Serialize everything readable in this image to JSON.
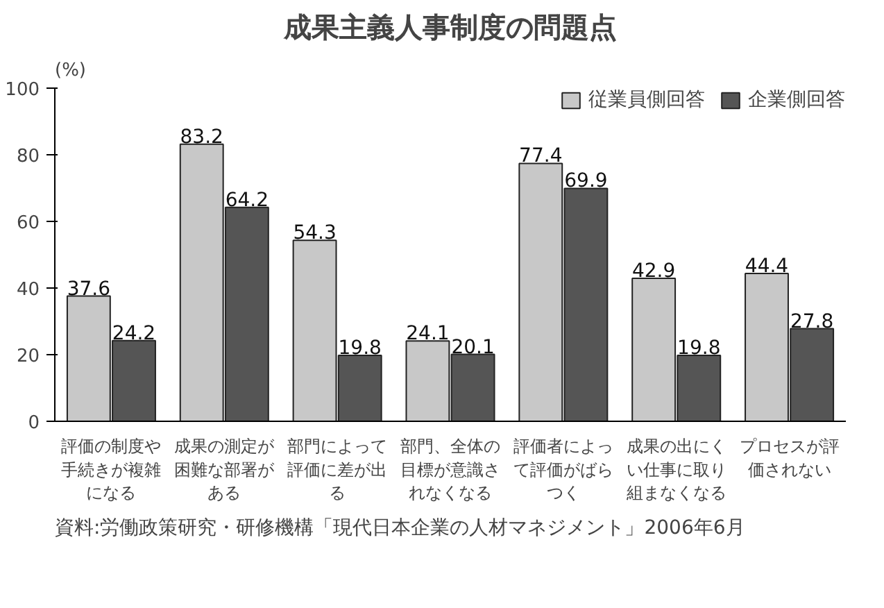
{
  "chart_data": {
    "type": "bar",
    "title": "成果主義人事制度の問題点",
    "ylabel": "(%)",
    "categories": [
      "評価の制度や手続きが複雑になる",
      "成果の測定が困難な部署がある",
      "部門によって評価に差が出る",
      "部門、全体の目標が意識されなくなる",
      "評価者によって評価がばらつく",
      "成果の出にくい仕事に取り組まなくなる",
      "プロセスが評価されない"
    ],
    "series": [
      {
        "name": "従業員側回答",
        "color": "#c8c8c8",
        "values": [
          37.6,
          83.2,
          54.3,
          24.1,
          77.4,
          42.9,
          44.4
        ]
      },
      {
        "name": "企業側回答",
        "color": "#555555",
        "values": [
          24.2,
          64.2,
          19.8,
          20.1,
          69.9,
          19.8,
          27.8
        ]
      }
    ],
    "ylim": [
      0,
      100
    ],
    "yticks": [
      0,
      20,
      40,
      60,
      80,
      100
    ],
    "data_labels": true,
    "legend": "top right",
    "grid": false,
    "annotations": [
      "資料:労働政策研究・研修機構「現代日本企業の人材マネジメント」2006年6月"
    ]
  }
}
